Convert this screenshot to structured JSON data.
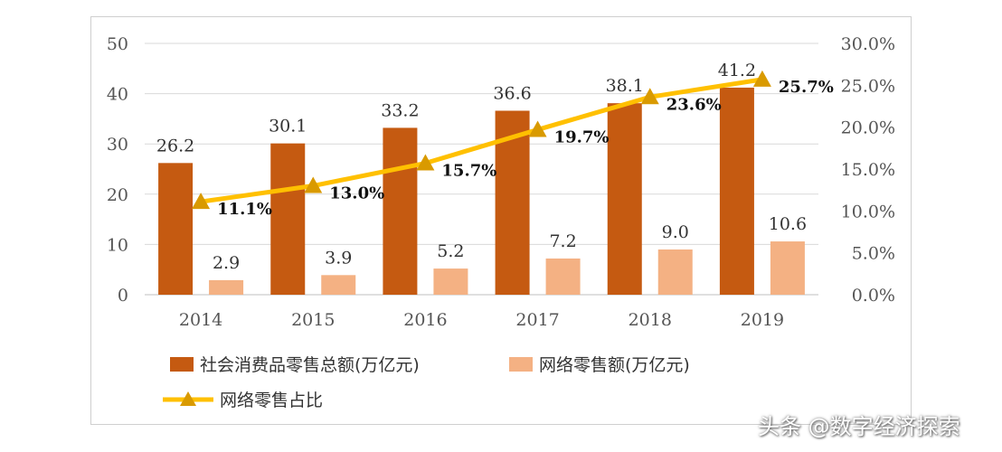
{
  "chart_data": {
    "type": "bar",
    "categories": [
      "2014",
      "2015",
      "2016",
      "2017",
      "2018",
      "2019"
    ],
    "series": [
      {
        "name": "社会消费品零售总额(万亿元)",
        "type": "bar",
        "axis": "left",
        "values": [
          26.2,
          30.1,
          33.2,
          36.6,
          38.1,
          41.2
        ],
        "labels": [
          "26.2",
          "30.1",
          "33.2",
          "36.6",
          "38.1",
          "41.2"
        ]
      },
      {
        "name": "网络零售额(万亿元)",
        "type": "bar",
        "axis": "left",
        "values": [
          2.9,
          3.9,
          5.2,
          7.2,
          9.0,
          10.6
        ],
        "labels": [
          "2.9",
          "3.9",
          "5.2",
          "7.2",
          "9.0",
          "10.6"
        ]
      },
      {
        "name": "网络零售占比",
        "type": "line",
        "axis": "right",
        "values": [
          11.1,
          13.0,
          15.7,
          19.7,
          23.6,
          25.7
        ],
        "labels": [
          "11.1%",
          "13.0%",
          "15.7%",
          "19.7%",
          "23.6%",
          "25.7%"
        ]
      }
    ],
    "left_axis": {
      "ylim": [
        0,
        50
      ],
      "ticks": [
        "0",
        "10",
        "20",
        "30",
        "40",
        "50"
      ]
    },
    "right_axis": {
      "ylim": [
        0,
        30
      ],
      "ticks": [
        "0.0%",
        "5.0%",
        "10.0%",
        "15.0%",
        "20.0%",
        "25.0%",
        "30.0%"
      ]
    },
    "grid": true,
    "legend_position": "bottom"
  },
  "colors": {
    "total": "#c55a11",
    "online": "#f4b183",
    "share_line": "#ffc000",
    "share_marker": "#d99a00",
    "grid": "#d9d9d9"
  },
  "watermark": "头条 @数字经济探索"
}
